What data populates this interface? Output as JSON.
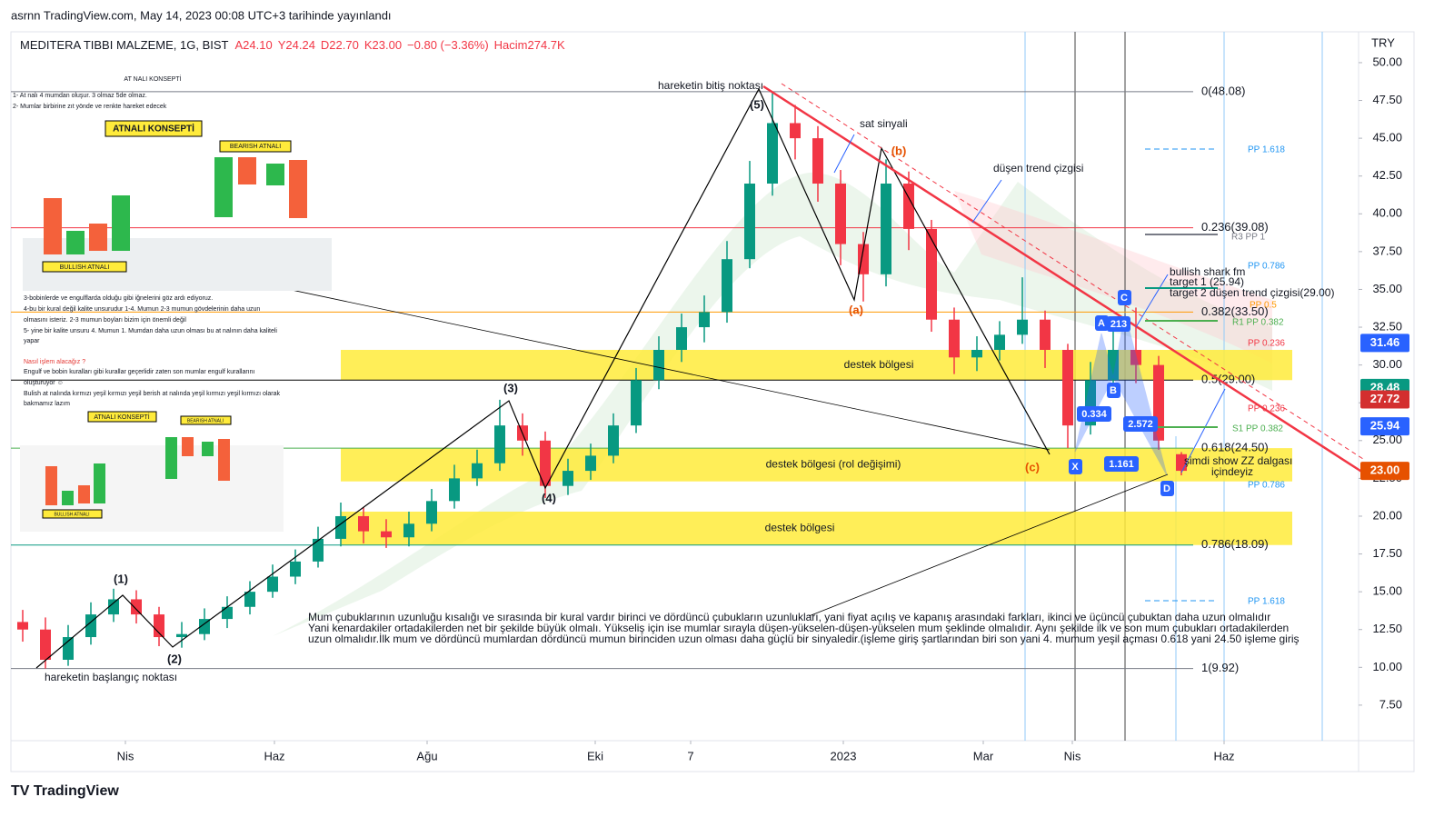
{
  "header": {
    "published": "asrnn TradingView.com, May 14, 2023 00:08 UTC+3 tarihinde yayınlandı",
    "brand": "TV TradingView"
  },
  "chart_data": {
    "type": "candlestick",
    "title": "MEDITERA TIBBI MALZEME, 1G, BIST",
    "legend": {
      "open": "A24.10",
      "high": "Y24.24",
      "low": "D22.70",
      "close": "K23.00",
      "change": "−0.80 (−3.36%)",
      "volume": "Hacim274.7K"
    },
    "currency": "TRY",
    "up_color": "#089981",
    "down_color": "#f23645",
    "x": [
      0,
      1,
      2,
      3,
      4,
      5,
      6,
      7,
      8,
      9,
      10,
      11,
      12,
      13,
      14,
      15,
      16,
      17,
      18,
      19,
      20,
      21,
      22,
      23,
      24,
      25,
      26,
      27,
      28,
      29,
      30,
      31,
      32,
      33,
      34,
      35,
      36,
      37,
      38,
      39,
      40,
      41,
      42,
      43,
      44,
      45,
      46,
      47,
      48,
      49,
      50,
      51
    ],
    "open": [
      13,
      12.5,
      10.5,
      12,
      13.5,
      14.5,
      13.5,
      12,
      12.2,
      13.2,
      14,
      15,
      16,
      17,
      18.5,
      20,
      19,
      18.6,
      19.5,
      21,
      22.5,
      23.5,
      26,
      25,
      22,
      23,
      24,
      26,
      29,
      31,
      32.5,
      33.5,
      37,
      42,
      46,
      45,
      42,
      38,
      36,
      42,
      39,
      33,
      30.5,
      31,
      32,
      33,
      31,
      26,
      29,
      31,
      30,
      24.1
    ],
    "high": [
      13.8,
      13.3,
      12.8,
      14.3,
      15.2,
      15.1,
      14,
      13,
      13.9,
      14.7,
      15.7,
      16.8,
      17.8,
      19.3,
      20.9,
      20.6,
      19.8,
      20.3,
      21.8,
      23.4,
      24.4,
      27.7,
      26.8,
      25.6,
      23.8,
      24.8,
      26.8,
      29.8,
      31.9,
      33.4,
      34.6,
      38.2,
      43.5,
      48.08,
      47.2,
      45.8,
      42.9,
      38.8,
      43.6,
      42.8,
      39.6,
      33.8,
      31.9,
      32.9,
      35.8,
      33.6,
      31.4,
      30.2,
      32.5,
      33.8,
      30.6,
      24.24
    ],
    "low": [
      11.7,
      9.92,
      10.1,
      11.5,
      13,
      12.9,
      11.4,
      11.3,
      11.8,
      12.6,
      13.5,
      14.6,
      15.5,
      16.6,
      18,
      18.2,
      17.9,
      18,
      19,
      20.5,
      22,
      23,
      24,
      21.2,
      21.4,
      22.4,
      23.5,
      25.5,
      28.4,
      30.2,
      31.5,
      32.8,
      36.4,
      41.2,
      43.6,
      40.8,
      36.6,
      34.2,
      35.2,
      37.6,
      32.2,
      29.4,
      29.6,
      30.3,
      31.4,
      29.8,
      24.5,
      25.4,
      28.2,
      28.8,
      24.4,
      22.7
    ],
    "close": [
      12.5,
      10.5,
      12,
      13.5,
      14.5,
      13.5,
      12,
      12.2,
      13.2,
      14,
      15,
      16,
      17,
      18.5,
      20,
      19,
      18.6,
      19.5,
      21,
      22.5,
      23.5,
      26,
      25,
      22,
      23,
      24,
      26,
      29,
      31,
      32.5,
      33.5,
      37,
      42,
      46,
      45,
      42,
      38,
      36,
      42,
      39,
      33,
      30.5,
      31,
      32,
      33,
      31,
      26,
      29,
      31,
      30,
      25,
      23
    ],
    "xlim": [
      -0.52,
      58.8
    ],
    "xticks": [
      {
        "value": 4.52,
        "label": "Nis"
      },
      {
        "value": 11.08,
        "label": "Haz"
      },
      {
        "value": 17.8,
        "label": "Ağu"
      },
      {
        "value": 25.2,
        "label": "Eki"
      },
      {
        "value": 29.4,
        "label": "7"
      },
      {
        "value": 36.12,
        "label": "2023"
      },
      {
        "value": 42.28,
        "label": "Mar"
      },
      {
        "value": 46.2,
        "label": "Nis"
      },
      {
        "value": 52.88,
        "label": "Haz"
      }
    ],
    "ylim": [
      5.33,
      52.04
    ],
    "yticks": [
      {
        "value": 7.5,
        "label": "7.50"
      },
      {
        "value": 10,
        "label": "10.00"
      },
      {
        "value": 12.5,
        "label": "12.50"
      },
      {
        "value": 15,
        "label": "15.00"
      },
      {
        "value": 17.5,
        "label": "17.50"
      },
      {
        "value": 20,
        "label": "20.00"
      },
      {
        "value": 22.5,
        "label": "22.50"
      },
      {
        "value": 25,
        "label": "25.00"
      },
      {
        "value": 27.5,
        "label": "27.50"
      },
      {
        "value": 30,
        "label": "30.00"
      },
      {
        "value": 32.5,
        "label": "32.50"
      },
      {
        "value": 35,
        "label": "35.00"
      },
      {
        "value": 37.5,
        "label": "37.50"
      },
      {
        "value": 40,
        "label": "40.00"
      },
      {
        "value": 42.5,
        "label": "42.50"
      },
      {
        "value": 45,
        "label": "45.00"
      },
      {
        "value": 47.5,
        "label": "47.50"
      },
      {
        "value": 50,
        "label": "50.00"
      }
    ],
    "grid": false,
    "fib_levels": [
      {
        "label": "0(48.08)",
        "value": 48.08,
        "color": "#787b86"
      },
      {
        "label": "0.236(39.08)",
        "value": 39.08,
        "color": "#f23645"
      },
      {
        "label": "0.382(33.50)",
        "value": 33.5,
        "color": "#ff9800"
      },
      {
        "label": "0.5(29.00)",
        "value": 29,
        "color": "#000000"
      },
      {
        "label": "0.618(24.50)",
        "value": 24.5,
        "color": "#4caf50"
      },
      {
        "label": "0.786(18.09)",
        "value": 18.09,
        "color": "#089981"
      },
      {
        "label": "1(9.92)",
        "value": 9.92,
        "color": "#787b86"
      }
    ],
    "zones": [
      {
        "label": "destek bölgesi",
        "low": 29,
        "high": 31
      },
      {
        "label": "destek bölgesi (rol değişimi)",
        "low": 22.3,
        "high": 24.5
      },
      {
        "label": "destek bölgesi",
        "low": 18.09,
        "high": 20.3
      }
    ],
    "price_tags": [
      {
        "value": 31.46,
        "color": "#2962ff"
      },
      {
        "value": 28.48,
        "color": "#089981"
      },
      {
        "value": 27.72,
        "color": "#d32f2f"
      },
      {
        "value": 25.94,
        "color": "#2962ff"
      },
      {
        "value": 23,
        "label": "23.00",
        "color": "#e65100"
      }
    ],
    "wave_labels": [
      "(1)",
      "(2)",
      "(3)",
      "(4)",
      "(5)",
      "(a)",
      "(b)",
      "(c)"
    ],
    "pattern_points": [
      "X",
      "A",
      "B",
      "C",
      "D"
    ],
    "pattern_ratios": [
      "0.334",
      "1.161",
      "2.572",
      "213"
    ],
    "annotations": [
      "hareketin bitiş noktası",
      "hareketin başlangıç noktası",
      "sat sinyali",
      "düşen trend çizgisi",
      "bullish shark fm",
      "target 1 (25.94)",
      "target 2 düşen trend çizgisi(29.00)",
      "şimdi show ZZ dalgası",
      "içindeyiz",
      "Mum çubuklarının uzunluğu kısalığı ve sırasında bir kural vardır birinci ve dördüncü çubukların uzunlukları, yani fiyat açılış ve kapanış arasındaki farkları, ikinci ve üçüncü çubuktan daha uzun olmalıdır",
      "Yani kenardakiler ortadakilerden net bir şekilde büyük olmalı. Yükseliş için ise mumlar sırayla düşen-yükselen-düşen-yükselen mum şeklinde olmalıdır. Aynı şekilde ilk ve son mum çubukları ortadakilerden",
      "uzun olmalıdır.İlk mum ve dördüncü mumlardan dördüncü mumun birinciden uzun olması daha güçlü bir sinyaledir.(işleme giriş şartlarından biri son  yani 4. mumum yeşil açması 0.618 yani 24.50 işleme giriş"
    ],
    "pivot_labels": [
      "PP 1.618",
      "R3 PP 1",
      "PP 0.786",
      "PP 0.5",
      "R1 PP 0.382",
      "PP 0.236",
      "PP 0.236",
      "S1 PP 0.382",
      "PP 0.786",
      "PP 1.618"
    ],
    "inset_notes": [
      "AT NALI KONSEPTİ",
      "1-   At nalı 4 mumdan oluşur. 3 olmaz 5de olmaz.",
      "2-   Mumlar birbirine zıt yönde ve renkte hareket edecek",
      "ATNALI KONSEPTİ",
      "BEARISH ATNALI",
      "BULLISH ATNALI",
      "3-bobinlerde ve engulflarda olduğu gibi iğnelerini göz ardı ediyoruz.",
      "4-bu bir kural değil kalite unsurudur 1-4. Mumun 2-3 mumun gövdelerinin daha uzun",
      "olmasını isteriz. 2-3 mumun boyları bizim için önemli değil",
      "5- yine bir kalite unsuru 4. Mumun 1. Mumdan daha uzun olması bu at nalının daha kaliteli",
      "yapar",
      "Nasıl işlem alacağız ?",
      "Engulf ve bobin kuralları gibi kurallar geçerlidir zaten son mumlar engulf kurallarını",
      "oluşturuyor ☺",
      "Bulish at nalında kırmızı yeşil kırmızı yeşil   berish at nalında  yeşil kırmızı yeşil kırmızı olarak",
      "bakmamız lazım",
      "ATNALI KONSEPTİ",
      "BEARISH ATNALI",
      "BULLISH ATNALI"
    ]
  }
}
